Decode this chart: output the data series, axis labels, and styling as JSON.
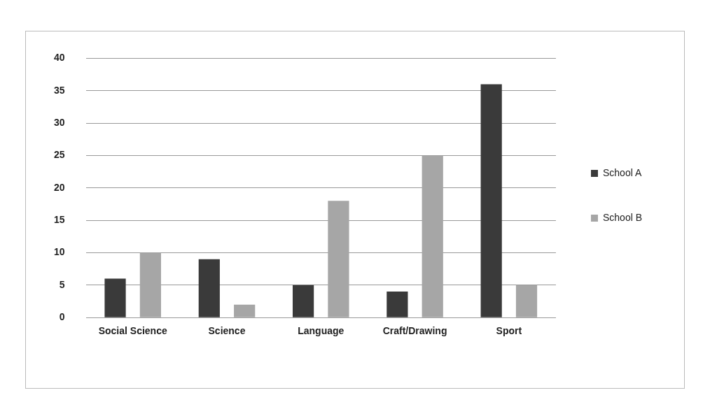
{
  "chart_data": {
    "type": "bar",
    "categories": [
      "Social Science",
      "Science",
      "Language",
      "Craft/Drawing",
      "Sport"
    ],
    "series": [
      {
        "name": "School A",
        "color": "#3a3a3a",
        "values": [
          6,
          9,
          5,
          4,
          36
        ]
      },
      {
        "name": "School B",
        "color": "#a6a6a6",
        "values": [
          10,
          2,
          18,
          25,
          5
        ]
      }
    ],
    "ylim": [
      0,
      40
    ],
    "yticks": [
      0,
      5,
      10,
      15,
      20,
      25,
      30,
      35,
      40
    ],
    "grid": "y",
    "legend": "right"
  }
}
